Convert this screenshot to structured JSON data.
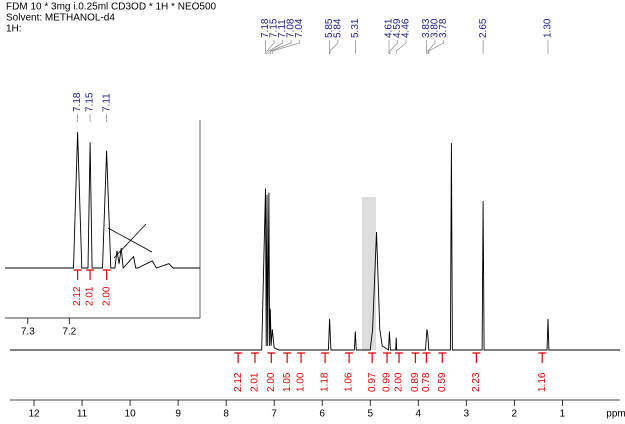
{
  "chart_data": [
    {
      "type": "nmr",
      "title_lines": [
        "FDM 10 * 3mg i.0.25ml CD3OD * 1H * NEO500",
        "Solvent: METHANOL-d4",
        "1H:"
      ],
      "x_label": "ppm",
      "xlim": [
        12.5,
        -0.2
      ],
      "xticks": [
        12,
        11,
        10,
        9,
        8,
        7,
        6,
        5,
        4,
        3,
        2,
        1
      ],
      "ylim": [
        0,
        100
      ],
      "color": "#000000",
      "x": [
        12.5,
        7.26,
        7.18,
        7.165,
        7.15,
        7.135,
        7.11,
        7.095,
        7.08,
        7.065,
        7.04,
        7.0,
        6.9,
        5.87,
        5.845,
        5.82,
        5.33,
        5.31,
        5.29,
        5.0,
        4.95,
        4.87,
        4.8,
        4.75,
        4.62,
        4.6,
        4.58,
        4.47,
        4.46,
        4.45,
        3.85,
        3.82,
        3.8,
        3.78,
        3.33,
        3.31,
        3.29,
        2.67,
        2.65,
        2.63,
        1.32,
        1.3,
        1.28,
        -0.2
      ],
      "values": [
        0,
        0,
        78,
        2,
        75,
        2,
        76,
        2,
        20,
        2,
        10,
        1,
        0,
        0,
        15,
        0,
        0,
        9,
        0,
        0,
        10,
        57,
        10,
        2,
        0,
        9,
        0,
        0,
        6,
        0,
        0,
        10,
        7,
        0,
        0,
        100,
        0,
        0,
        72,
        0,
        0,
        15,
        0,
        0
      ],
      "peaks": {
        "values": [
          7.18,
          7.15,
          7.11,
          7.08,
          7.04,
          5.85,
          5.84,
          5.31,
          4.61,
          4.59,
          4.46,
          3.83,
          3.8,
          3.78,
          2.65,
          1.3
        ],
        "value_labels": [
          "7.18",
          "7.15",
          "7.11",
          "7.08",
          "7.04",
          "5.85",
          "5.84",
          "5.31",
          "4.61",
          "4.59",
          "4.46",
          "3.83",
          "3.80",
          "3.78",
          "2.65",
          "1.30"
        ]
      },
      "integrals": {
        "x": [
          7.75,
          7.4,
          7.06,
          6.73,
          6.44,
          5.94,
          5.44,
          4.96,
          4.65,
          4.4,
          4.06,
          3.83,
          3.5,
          2.79,
          1.42
        ],
        "values": [
          2.12,
          2.01,
          2.0,
          1.05,
          1.0,
          1.18,
          1.06,
          0.97,
          0.99,
          2.0,
          0.89,
          0.78,
          0.59,
          2.23,
          1.16
        ],
        "value_labels": [
          "2.12",
          "2.01",
          "2.00",
          "1.05",
          "1.00",
          "1.18",
          "1.06",
          "0.97",
          "0.99",
          "2.00",
          "0.89",
          "0.78",
          "0.59",
          "2.23",
          "1.16"
        ]
      }
    },
    {
      "type": "nmr",
      "xlim": [
        7.355,
        6.885
      ],
      "xticks": [
        7.3,
        7.2
      ],
      "ylim": [
        0,
        100
      ],
      "color": "#000000",
      "x": [
        7.355,
        7.19,
        7.18,
        7.17,
        7.155,
        7.15,
        7.145,
        7.12,
        7.11,
        7.1,
        7.09,
        7.085,
        7.08,
        7.075,
        7.07,
        7.045,
        7.04,
        7.035,
        7.0,
        6.99,
        6.96,
        6.95,
        6.885
      ],
      "values": [
        0,
        0,
        95,
        0,
        0,
        88,
        0,
        0,
        82,
        0,
        0,
        12,
        3,
        14,
        0,
        8,
        0,
        0,
        5,
        0,
        3,
        0,
        0
      ],
      "peaks": {
        "values": [
          7.18,
          7.15,
          7.11
        ],
        "value_labels": [
          "7.18",
          "7.15",
          "7.11"
        ]
      },
      "integrals": {
        "x": [
          7.18,
          7.15,
          7.11
        ],
        "values": [
          2.12,
          2.01,
          2.0
        ],
        "value_labels": [
          "2.12",
          "2.01",
          "2.00"
        ]
      }
    }
  ]
}
